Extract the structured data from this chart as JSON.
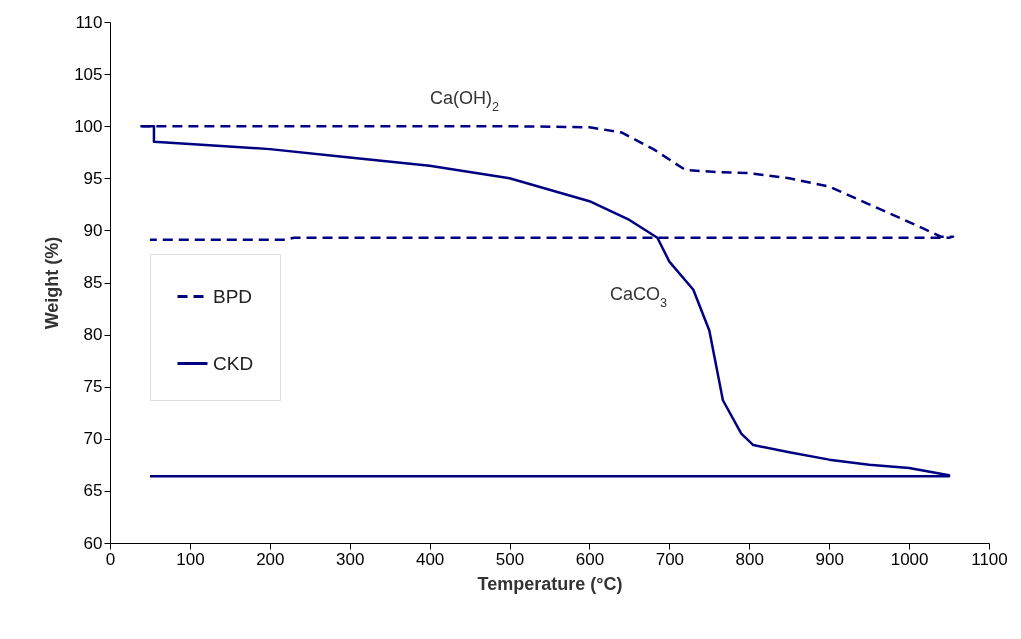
{
  "chart_data": {
    "type": "line",
    "xlabel": "Temperature (°C)",
    "ylabel": "Weight (%)",
    "xlim": [
      0,
      1100
    ],
    "xticks": [
      0,
      100,
      200,
      300,
      400,
      500,
      600,
      700,
      800,
      900,
      1000,
      1100
    ],
    "ylim": [
      60,
      110
    ],
    "yticks": [
      60,
      65,
      70,
      75,
      80,
      85,
      90,
      95,
      100,
      105,
      110
    ],
    "grid": false,
    "legend": "left",
    "marker": "none",
    "annotations": [
      "Ca(OH)$_{2}$",
      "CaCO$_{3}$"
    ],
    "series": [
      {
        "name": "BPD",
        "color": "#000080",
        "line_style": "dashed",
        "x": [
          38,
          55,
          100,
          300,
          500,
          600,
          640,
          680,
          700,
          720,
          760,
          800,
          850,
          900,
          950,
          1000,
          1040,
          1055,
          1050,
          230,
          220,
          50
        ],
        "values": [
          100,
          100,
          100,
          100,
          100,
          99.9,
          99.4,
          97.8,
          96.8,
          95.8,
          95.6,
          95.5,
          95.0,
          94.2,
          92.5,
          90.8,
          89.4,
          89.4,
          89.3,
          89.3,
          89.1,
          89.1
        ]
      },
      {
        "name": "CKD",
        "color": "#000080",
        "line_style": "solid",
        "x": [
          40,
          55,
          55,
          100,
          200,
          300,
          400,
          500,
          600,
          650,
          685,
          700,
          730,
          750,
          767,
          790,
          805,
          850,
          900,
          950,
          1000,
          1050,
          1050,
          50
        ],
        "values": [
          100,
          100,
          98.5,
          98.3,
          97.8,
          97.0,
          96.2,
          95.0,
          92.8,
          91.0,
          89.3,
          87.0,
          84.3,
          80.4,
          73.7,
          70.5,
          69.4,
          68.7,
          68.0,
          67.5,
          67.2,
          66.5,
          66.4,
          66.4
        ]
      }
    ]
  }
}
